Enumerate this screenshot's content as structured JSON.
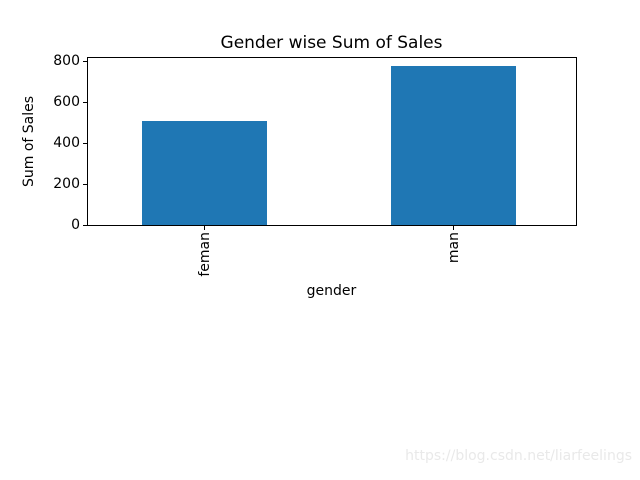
{
  "chart_data": {
    "type": "bar",
    "title": "Gender wise Sum of Sales",
    "xlabel": "gender",
    "ylabel": "Sum of Sales",
    "categories": [
      "feman",
      "man"
    ],
    "values": [
      507,
      777
    ],
    "yticks": [
      0,
      200,
      400,
      600,
      800
    ],
    "ylim": [
      0,
      822
    ],
    "bar_color": "#1f77b4",
    "grid": false,
    "legend": false,
    "x_tick_label_rotation_deg": 90
  },
  "watermark": {
    "text": "https://blog.csdn.net/liarfeelings",
    "color": "#e9e9e9"
  }
}
